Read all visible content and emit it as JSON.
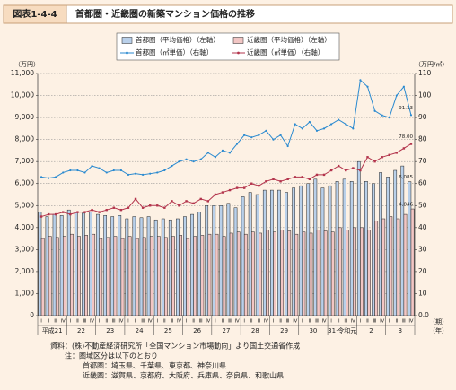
{
  "header": {
    "figure_no": "図表1-4-4",
    "title": "首都圏・近畿圏の新築マンション価格の推移"
  },
  "chart_data": {
    "type": "bar",
    "y_unit": "（万円）",
    "y2_unit": "（万円/㎡）",
    "x_unit_quarter": "（期）",
    "x_unit_year": "（年）",
    "categories": [
      "Ⅰ",
      "Ⅱ",
      "Ⅲ",
      "Ⅳ",
      "Ⅰ",
      "Ⅱ",
      "Ⅲ",
      "Ⅳ",
      "Ⅰ",
      "Ⅱ",
      "Ⅲ",
      "Ⅳ",
      "Ⅰ",
      "Ⅱ",
      "Ⅲ",
      "Ⅳ",
      "Ⅰ",
      "Ⅱ",
      "Ⅲ",
      "Ⅳ",
      "Ⅰ",
      "Ⅱ",
      "Ⅲ",
      "Ⅳ",
      "Ⅰ",
      "Ⅱ",
      "Ⅲ",
      "Ⅳ",
      "Ⅰ",
      "Ⅱ",
      "Ⅲ",
      "Ⅳ",
      "Ⅰ",
      "Ⅱ",
      "Ⅲ",
      "Ⅳ",
      "Ⅰ",
      "Ⅱ",
      "Ⅲ",
      "Ⅳ",
      "Ⅰ",
      "Ⅱ",
      "Ⅲ",
      "Ⅳ",
      "Ⅰ",
      "Ⅱ",
      "Ⅲ",
      "Ⅳ",
      "Ⅰ",
      "Ⅱ",
      "Ⅲ",
      "Ⅳ"
    ],
    "year_labels": [
      "平成21",
      "22",
      "23",
      "24",
      "25",
      "26",
      "27",
      "28",
      "29",
      "30",
      "31·令和元",
      "2",
      "3"
    ],
    "ylim": [
      0,
      11000
    ],
    "yticks": [
      0,
      {
        "value": 1000,
        "label": "1,000"
      },
      {
        "value": 2000,
        "label": "2,000"
      },
      {
        "value": 3000,
        "label": "3,000"
      },
      {
        "value": 4000,
        "label": "4,000"
      },
      {
        "value": 5000,
        "label": "5,000"
      },
      {
        "value": 6000,
        "label": "6,000"
      },
      {
        "value": 7000,
        "label": "7,000"
      },
      {
        "value": 8000,
        "label": "8,000"
      },
      {
        "value": 9000,
        "label": "9,000"
      },
      {
        "value": 10000,
        "label": "10,000"
      },
      {
        "value": 11000,
        "label": "11,000"
      }
    ],
    "y2lim": [
      0,
      110
    ],
    "y2ticks": [
      {
        "value": 0,
        "label": "0.0"
      },
      10,
      20,
      30,
      40,
      50,
      60,
      70,
      80,
      90,
      100,
      110
    ],
    "grid": true,
    "series": [
      {
        "name": "首都圏（平均価格）（左軸）",
        "type": "bar",
        "color": "#b9d0ea",
        "values": [
          4700,
          4500,
          4600,
          4550,
          4800,
          4700,
          4650,
          4700,
          4600,
          4550,
          4500,
          4550,
          4400,
          4500,
          4450,
          4500,
          4350,
          4400,
          4350,
          4400,
          4500,
          4600,
          4700,
          5000,
          5000,
          5000,
          5100,
          4900,
          5400,
          5600,
          5500,
          5700,
          5700,
          5700,
          5600,
          5800,
          5900,
          6000,
          6200,
          5800,
          5900,
          6100,
          6200,
          6100,
          7000,
          6100,
          6000,
          6500,
          6300,
          6600,
          6800,
          6085
        ],
        "value_labels": [
          null,
          null,
          null,
          null,
          null,
          null,
          null,
          null,
          null,
          null,
          null,
          null,
          null,
          null,
          null,
          null,
          null,
          null,
          null,
          null,
          null,
          null,
          null,
          null,
          null,
          null,
          null,
          null,
          null,
          null,
          null,
          null,
          null,
          null,
          null,
          null,
          null,
          null,
          null,
          null,
          null,
          null,
          null,
          null,
          null,
          null,
          null,
          null,
          null,
          null,
          null,
          "6,085"
        ]
      },
      {
        "name": "近畿圏（平均価格）（左軸）",
        "type": "bar",
        "color": "#f2c6c4",
        "values": [
          3500,
          3600,
          3550,
          3600,
          3700,
          3600,
          3650,
          3700,
          3500,
          3550,
          3600,
          3500,
          3600,
          3500,
          3550,
          3600,
          3600,
          3550,
          3600,
          3650,
          3500,
          3600,
          3650,
          3700,
          3700,
          3600,
          3750,
          3800,
          3700,
          3800,
          3750,
          3900,
          3800,
          3900,
          3850,
          3700,
          3800,
          3750,
          3900,
          3850,
          3800,
          4000,
          3900,
          4000,
          4000,
          3900,
          4300,
          4400,
          4500,
          4400,
          4600,
          4846
        ],
        "value_labels": [
          null,
          null,
          null,
          null,
          null,
          null,
          null,
          null,
          null,
          null,
          null,
          null,
          null,
          null,
          null,
          null,
          null,
          null,
          null,
          null,
          null,
          null,
          null,
          null,
          null,
          null,
          null,
          null,
          null,
          null,
          null,
          null,
          null,
          null,
          null,
          null,
          null,
          null,
          null,
          null,
          null,
          null,
          null,
          null,
          null,
          null,
          null,
          null,
          null,
          null,
          null,
          "4,846"
        ]
      },
      {
        "name": "首都圏（㎡単価）（右軸）",
        "type": "line",
        "axis": "y2",
        "color": "#2a8ad0",
        "values": [
          63,
          62.5,
          63,
          65,
          66,
          66,
          65,
          68,
          67,
          65,
          66,
          66,
          64,
          64.5,
          64,
          64.5,
          65,
          66,
          68,
          70,
          71,
          70,
          71,
          74,
          72,
          75,
          74,
          78,
          82,
          81,
          82,
          84,
          80,
          82,
          77,
          87,
          85,
          88,
          84,
          85,
          87,
          89,
          87,
          85,
          107,
          104,
          93,
          91,
          90,
          100,
          104,
          91.13
        ],
        "value_labels": [
          null,
          null,
          null,
          null,
          null,
          null,
          null,
          null,
          null,
          null,
          null,
          null,
          null,
          null,
          null,
          null,
          null,
          null,
          null,
          null,
          null,
          null,
          null,
          null,
          null,
          null,
          null,
          null,
          null,
          null,
          null,
          null,
          null,
          null,
          null,
          null,
          null,
          null,
          null,
          null,
          null,
          null,
          null,
          null,
          null,
          null,
          null,
          null,
          null,
          null,
          null,
          "91.13"
        ]
      },
      {
        "name": "近畿圏（㎡単価）（右軸）",
        "type": "line",
        "axis": "y2",
        "color": "#b3344c",
        "values": [
          45,
          46,
          46,
          47,
          46,
          47,
          47,
          48,
          47,
          48,
          49,
          48,
          49,
          53,
          49,
          50,
          50,
          49,
          52,
          50,
          52,
          51,
          53,
          52,
          55,
          56,
          57,
          58,
          58,
          60,
          59,
          61,
          62,
          61,
          62,
          63,
          63,
          62,
          64,
          64,
          66,
          68,
          66,
          67,
          66,
          72,
          70,
          72,
          73,
          74,
          76,
          78
        ],
        "value_labels": [
          null,
          null,
          null,
          null,
          null,
          null,
          null,
          null,
          null,
          null,
          null,
          null,
          null,
          null,
          null,
          null,
          null,
          null,
          null,
          null,
          null,
          null,
          null,
          null,
          null,
          null,
          null,
          null,
          null,
          null,
          null,
          null,
          null,
          null,
          null,
          null,
          null,
          null,
          null,
          null,
          null,
          null,
          null,
          null,
          null,
          null,
          null,
          null,
          null,
          null,
          null,
          "78.00"
        ]
      }
    ]
  },
  "notes": [
    "資料：(株)不動産経済研究所「全国マンション市場動向」より国土交通省作成",
    "注：圏域区分は以下のとおり",
    "首都圏：埼玉県、千葉県、東京都、神奈川県",
    "近畿圏：滋賀県、京都府、大阪府、兵庫県、奈良県、和歌山県"
  ]
}
